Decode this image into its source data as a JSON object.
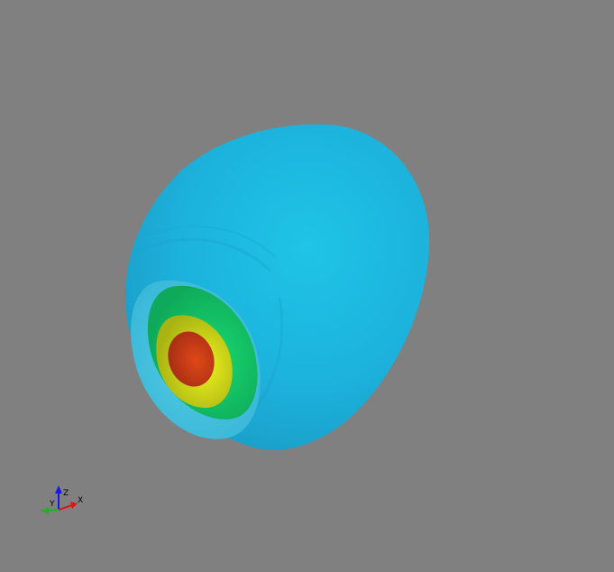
{
  "viewport": {
    "background": "#808080"
  },
  "scene": {
    "object": "contour-isosurfaces",
    "layers": [
      {
        "name": "outer-shell",
        "color": "#1cb8e0"
      },
      {
        "name": "inner-cyan-shell",
        "color": "#3fc4de"
      },
      {
        "name": "green-shell",
        "color": "#14cf6a"
      },
      {
        "name": "yellow-shell",
        "color": "#e8ee1a"
      },
      {
        "name": "red-core",
        "color": "#d8401a"
      }
    ]
  },
  "axes": {
    "x_label": "X",
    "y_label": "Y",
    "z_label": "Z",
    "x_color": "#d81818",
    "y_color": "#18b818",
    "z_color": "#1818e8"
  }
}
